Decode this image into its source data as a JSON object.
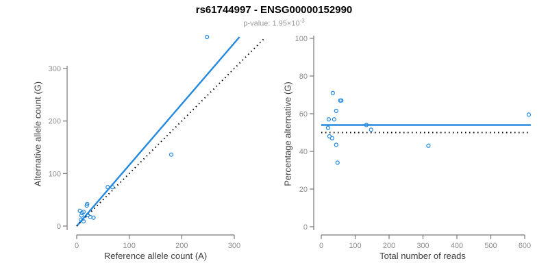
{
  "header": {
    "title": "rs61744997 - ENSG00000152990",
    "pvalue_text": "p-value: 1.95×10",
    "pvalue_exp": "-3"
  },
  "colors": {
    "point_blue": "#2288e0",
    "fit_line_blue": "#2288e0",
    "identity_line_black": "#000000",
    "axis_line_gray": "#777777",
    "tick_label_gray": "#8c8c8c",
    "axis_label_dark": "#3c3c3c",
    "subtitle_gray": "#999999",
    "title_black": "#000000"
  },
  "chart_data": [
    {
      "type": "scatter",
      "title": "rs61744997 - ENSG00000152990",
      "subtitle": "p-value: 1.95×10^-3",
      "xlabel": "Reference allele count (A)",
      "ylabel": "Alternative allele count (G)",
      "xlim": [
        0,
        310
      ],
      "ylim": [
        0,
        365
      ],
      "grid": false,
      "legend": null,
      "xticks": [
        0,
        100,
        200,
        300
      ],
      "yticks": [
        0,
        100,
        200,
        300
      ],
      "points": [
        [
          10,
          25
        ],
        [
          19,
          39
        ],
        [
          20,
          42
        ],
        [
          6,
          29
        ],
        [
          13,
          27
        ],
        [
          9,
          20
        ],
        [
          21,
          21
        ],
        [
          26,
          17
        ],
        [
          32,
          16
        ],
        [
          8,
          12
        ],
        [
          13,
          9
        ],
        [
          59,
          74
        ],
        [
          68,
          74
        ],
        [
          180,
          136
        ],
        [
          248,
          360
        ]
      ],
      "lines": [
        {
          "name": "regression-fit",
          "x": [
            0,
            310
          ],
          "y": [
            0,
            360
          ],
          "dash": false,
          "color": "blue"
        },
        {
          "name": "identity",
          "x": [
            0,
            358
          ],
          "y": [
            0,
            358
          ],
          "dash": true,
          "color": "black"
        }
      ]
    },
    {
      "type": "scatter",
      "xlabel": "Total number of reads",
      "ylabel": "Percentage alternative (G)",
      "xlim": [
        0,
        620
      ],
      "ylim": [
        0,
        100
      ],
      "grid": false,
      "legend": null,
      "xticks": [
        0,
        100,
        200,
        300,
        400,
        500,
        600
      ],
      "yticks": [
        0,
        20,
        40,
        60,
        80,
        100
      ],
      "points": [
        [
          34,
          71
        ],
        [
          56,
          67
        ],
        [
          59,
          67
        ],
        [
          44,
          61.5
        ],
        [
          22,
          57
        ],
        [
          38,
          57
        ],
        [
          20,
          52.5
        ],
        [
          133,
          54
        ],
        [
          147,
          51.5
        ],
        [
          24,
          48
        ],
        [
          32,
          47
        ],
        [
          44,
          43.5
        ],
        [
          316,
          43
        ],
        [
          48,
          34
        ],
        [
          612,
          59.5
        ]
      ],
      "lines": [
        {
          "name": "mean-percentage",
          "x": [
            0,
            618
          ],
          "y": [
            54,
            54
          ],
          "dash": false,
          "color": "blue"
        },
        {
          "name": "fifty-percent-reference",
          "x": [
            0,
            618
          ],
          "y": [
            50,
            50
          ],
          "dash": true,
          "color": "black"
        }
      ]
    }
  ]
}
